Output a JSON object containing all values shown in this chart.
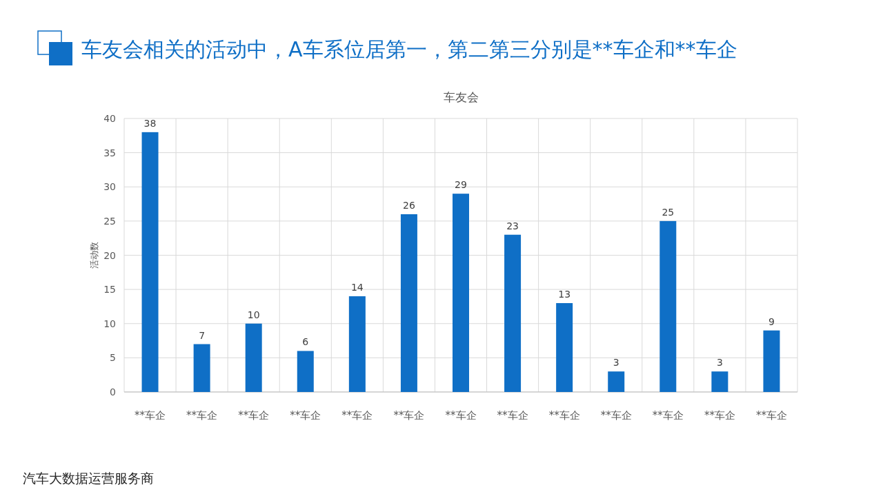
{
  "chart_data": {
    "type": "bar",
    "title": "车友会相关的活动中，A车系位居第一，第二第三分别是**车企和**车企",
    "subtitle": "车友会",
    "ylabel": "活动数",
    "categories": [
      "**车企",
      "**车企",
      "**车企",
      "**车企",
      "**车企",
      "**车企",
      "**车企",
      "**车企",
      "**车企",
      "**车企",
      "**车企",
      "**车企",
      "**车企"
    ],
    "values": [
      38,
      7,
      10,
      6,
      14,
      26,
      29,
      23,
      13,
      3,
      25,
      3,
      9
    ],
    "color": "#0f6fc6",
    "ylim": [
      0,
      40
    ],
    "yticks": [
      0,
      5,
      10,
      15,
      20,
      25,
      30,
      35,
      40
    ],
    "grid": true,
    "data_labels": true,
    "annotations": [
      "汽车大数据运营服务商"
    ]
  }
}
